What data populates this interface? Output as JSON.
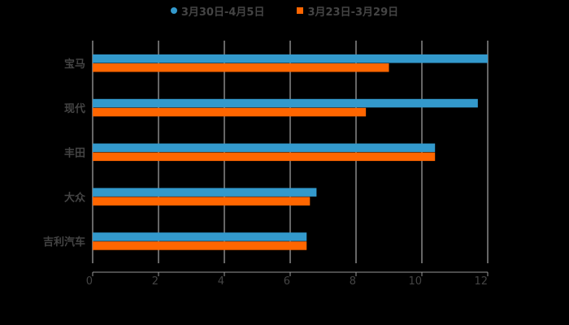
{
  "chart_data": {
    "type": "bar",
    "orientation": "horizontal",
    "categories": [
      "宝马",
      "现代",
      "丰田",
      "大众",
      "吉利汽车"
    ],
    "series": [
      {
        "name": "3月30日-4月5日",
        "color": "#3399cc",
        "marker": "circle",
        "values": [
          12.0,
          11.7,
          10.4,
          6.8,
          6.5
        ]
      },
      {
        "name": "3月23日-3月29日",
        "color": "#ff6600",
        "marker": "square",
        "values": [
          9.0,
          8.3,
          10.4,
          6.6,
          6.5
        ]
      }
    ],
    "title": "",
    "xlabel": "",
    "ylabel": "",
    "xlim": [
      0,
      12
    ],
    "xticks": [
      0,
      2,
      4,
      6,
      8,
      10,
      12
    ],
    "grid": true,
    "legend_position": "top"
  },
  "legend": {
    "series0": "3月30日-4月5日",
    "series1": "3月23日-3月29日"
  },
  "colors": {
    "background": "#000000",
    "series0": "#3399cc",
    "series1": "#ff6600",
    "grid": "#cccccc",
    "text": "#444444"
  }
}
